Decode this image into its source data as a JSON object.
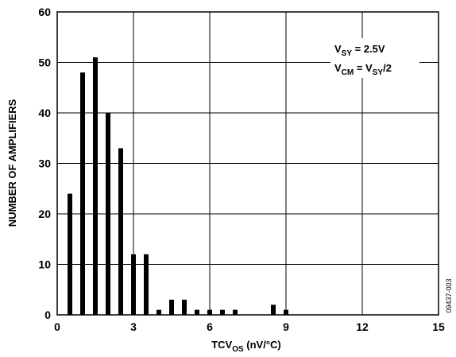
{
  "chart_data": {
    "type": "bar",
    "xlabel": {
      "main": "TCV",
      "sub": "OS",
      "tail": " (nV/°C)"
    },
    "ylabel": "NUMBER OF AMPLIFIERS",
    "xlim": [
      0,
      15
    ],
    "ylim": [
      0,
      60
    ],
    "xticks": [
      0,
      3,
      6,
      9,
      12,
      15
    ],
    "yticks": [
      0,
      10,
      20,
      30,
      40,
      50,
      60
    ],
    "grid": true,
    "bar_color": "#000000",
    "x": [
      0.5,
      1.0,
      1.5,
      2.0,
      2.5,
      3.0,
      3.5,
      4.0,
      4.5,
      5.0,
      5.5,
      6.0,
      6.5,
      7.0,
      7.5,
      8.0,
      8.5,
      9.0
    ],
    "values": [
      24,
      48,
      51,
      40,
      33,
      12,
      12,
      1,
      3,
      3,
      1,
      1,
      1,
      1,
      0,
      0,
      2,
      1
    ],
    "annotations": {
      "line1": {
        "main": "V",
        "sub": "SY",
        "tail": " = 2.5V"
      },
      "line2": {
        "main": "V",
        "sub": "CM",
        "mid": " = V",
        "sub2": "SY",
        "tail": "/2"
      }
    },
    "figure_id": "09437-003"
  }
}
